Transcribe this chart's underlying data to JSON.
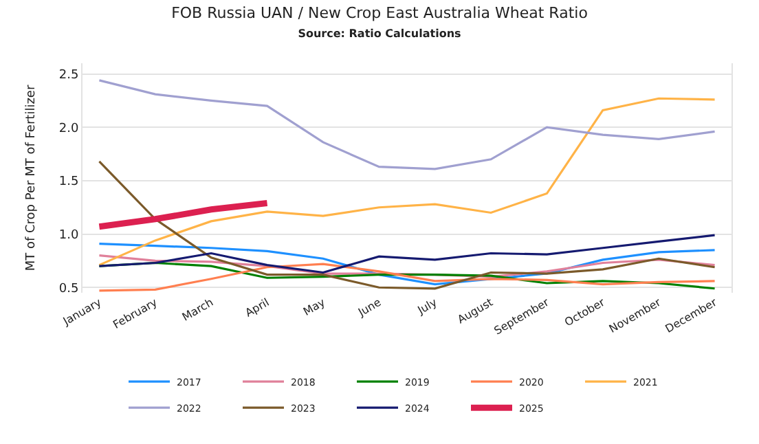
{
  "chart_data": {
    "type": "line",
    "title": "FOB Russia UAN / New Crop East Australia Wheat Ratio",
    "subtitle": "Source: Ratio Calculations",
    "ylabel": "MT of Crop Per MT of Fertilizer",
    "categories": [
      "January",
      "February",
      "March",
      "April",
      "May",
      "June",
      "July",
      "August",
      "September",
      "October",
      "November",
      "December"
    ],
    "ylim": [
      0.45,
      2.6
    ],
    "yticks": [
      {
        "value": 0.5,
        "label": "0.5"
      },
      {
        "value": 1.0,
        "label": "1.0"
      },
      {
        "value": 1.5,
        "label": "1.5"
      },
      {
        "value": 2.0,
        "label": "2.0"
      },
      {
        "value": 2.5,
        "label": "2.5"
      }
    ],
    "grid": "y",
    "legend": "bottom",
    "marker": "none",
    "line_style": "solid",
    "series": [
      {
        "name": "2017",
        "color": "#1e90ff",
        "values": [
          0.91,
          0.89,
          0.87,
          0.84,
          0.77,
          0.62,
          0.53,
          0.58,
          0.63,
          0.76,
          0.83,
          0.85
        ]
      },
      {
        "name": "2018",
        "color": "#e0809a",
        "values": [
          0.8,
          0.75,
          0.74,
          0.7,
          0.63,
          0.63,
          0.62,
          0.6,
          0.65,
          0.73,
          0.76,
          0.71
        ]
      },
      {
        "name": "2019",
        "color": "#008000",
        "values": [
          0.7,
          0.73,
          0.7,
          0.59,
          0.6,
          0.62,
          0.62,
          0.61,
          0.54,
          0.56,
          0.54,
          0.49
        ]
      },
      {
        "name": "2020",
        "color": "#ff7f50",
        "values": [
          0.47,
          0.48,
          0.58,
          0.69,
          0.72,
          0.65,
          0.56,
          0.58,
          0.57,
          0.53,
          0.55,
          0.56
        ]
      },
      {
        "name": "2021",
        "color": "#ffb347",
        "values": [
          0.71,
          0.94,
          1.12,
          1.21,
          1.17,
          1.25,
          1.28,
          1.2,
          1.38,
          2.16,
          2.27,
          2.26
        ]
      },
      {
        "name": "2022",
        "color": "#a0a0d0",
        "values": [
          2.44,
          2.31,
          2.25,
          2.2,
          1.86,
          1.63,
          1.61,
          1.7,
          2.0,
          1.93,
          1.89,
          1.96
        ]
      },
      {
        "name": "2023",
        "color": "#7b5a2a",
        "values": [
          1.68,
          1.14,
          0.78,
          0.62,
          0.62,
          0.5,
          0.49,
          0.64,
          0.63,
          0.67,
          0.77,
          0.69
        ]
      },
      {
        "name": "2024",
        "color": "#151a70",
        "values": [
          0.7,
          0.73,
          0.82,
          0.71,
          0.64,
          0.79,
          0.76,
          0.82,
          0.81,
          0.87,
          0.93,
          0.99
        ]
      },
      {
        "name": "2025",
        "color": "#dc2050",
        "values": [
          1.07,
          1.14,
          1.23,
          1.29,
          null,
          null,
          null,
          null,
          null,
          null,
          null,
          null
        ]
      }
    ]
  }
}
